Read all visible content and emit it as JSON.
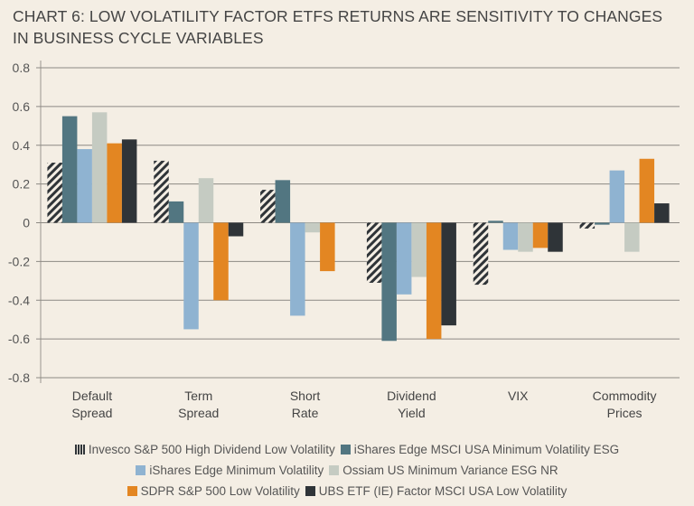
{
  "chart_data": {
    "type": "bar",
    "title": "CHART 6: LOW VOLATILITY FACTOR ETFS RETURNS ARE SENSITIVITY TO CHANGES IN BUSINESS CYCLE VARIABLES",
    "categories": [
      [
        "Default",
        "Spread"
      ],
      [
        "Term",
        "Spread"
      ],
      [
        "Short",
        "Rate"
      ],
      [
        "Dividend",
        "Yield"
      ],
      [
        "VIX"
      ],
      [
        "Commodity",
        "Prices"
      ]
    ],
    "ylim": [
      -0.8,
      0.8
    ],
    "yticks": [
      0.8,
      0.6,
      0.4,
      0.2,
      0,
      -0.2,
      -0.4,
      -0.6,
      -0.8
    ],
    "ytick_labels": [
      "0.8",
      "0.6",
      "0.4",
      "0.2",
      "0",
      "-0.2",
      "-0.4",
      "-0.6",
      "-0.8"
    ],
    "grid": true,
    "legend_placement": "bottom",
    "series": [
      {
        "name": "Invesco S&P 500 High Dividend Low Volatility",
        "color": "#2f3438",
        "pattern": "hatch",
        "values": [
          0.31,
          0.32,
          0.17,
          -0.31,
          -0.32,
          -0.03
        ]
      },
      {
        "name": "iShares Edge MSCI USA Minimum Volatility ESG",
        "color": "#527681",
        "values": [
          0.55,
          0.11,
          0.22,
          -0.61,
          0.01,
          -0.01
        ]
      },
      {
        "name": "iShares Edge Minimum Volatility",
        "color": "#8fb3d1",
        "values": [
          0.38,
          -0.55,
          -0.48,
          -0.37,
          -0.14,
          0.27
        ]
      },
      {
        "name": "Ossiam US Minimum Variance ESG NR",
        "color": "#c5cbc2",
        "values": [
          0.57,
          0.23,
          -0.05,
          -0.28,
          -0.15,
          -0.15
        ]
      },
      {
        "name": "SDPR S&P 500 Low Volatility",
        "color": "#e38622",
        "values": [
          0.41,
          -0.4,
          -0.25,
          -0.6,
          -0.13,
          0.33
        ]
      },
      {
        "name": "UBS ETF (IE) Factor MSCI USA Low Volatility",
        "color": "#2f3438",
        "values": [
          0.43,
          -0.07,
          0,
          -0.53,
          -0.15,
          0.1
        ]
      }
    ]
  }
}
